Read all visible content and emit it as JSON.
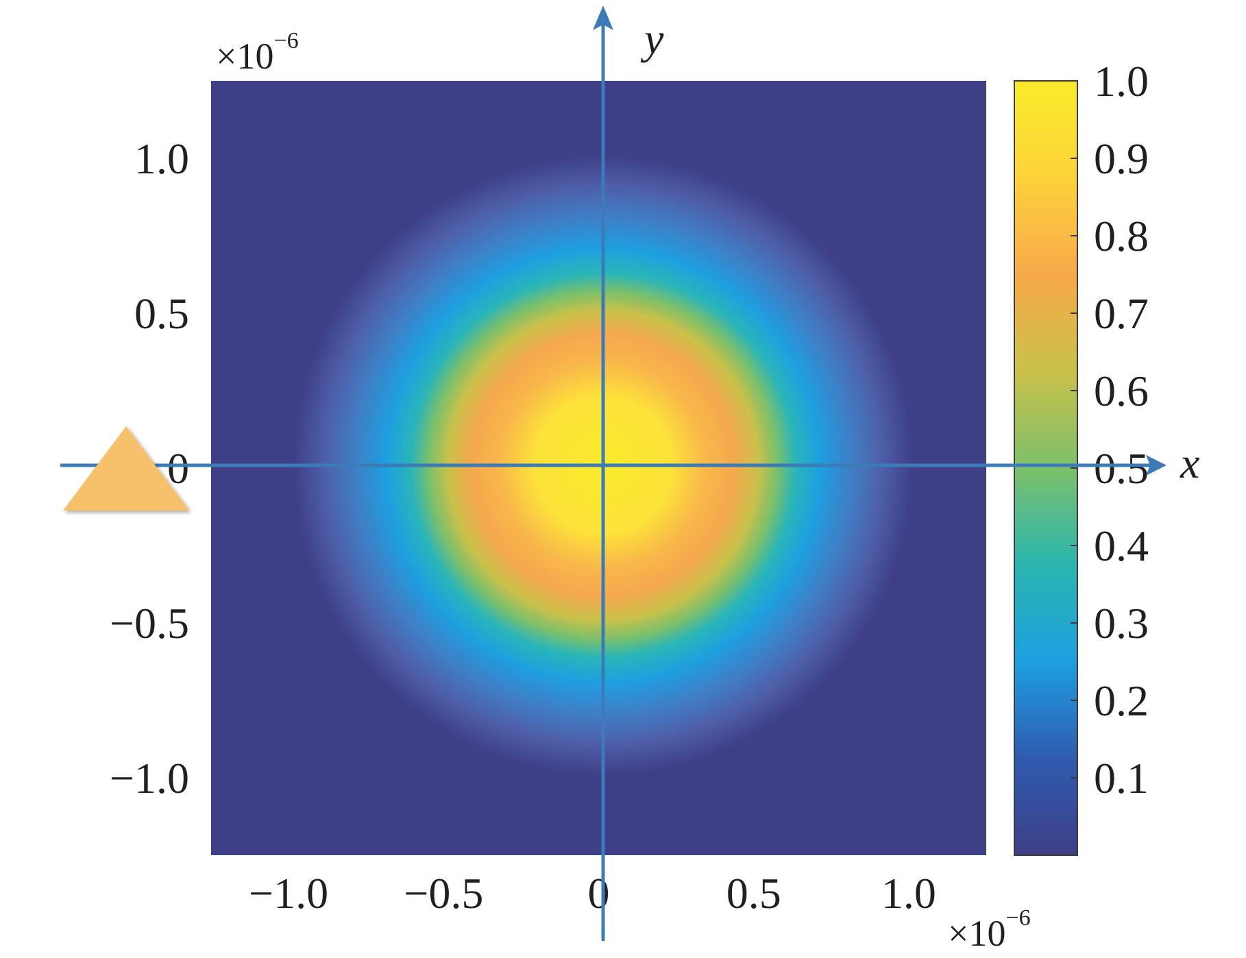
{
  "chart_data": {
    "type": "heatmap",
    "title": "",
    "xlabel": "x",
    "ylabel": "y",
    "x_multiplier": {
      "base": "×10",
      "exp": "−6"
    },
    "y_multiplier": {
      "base": "×10",
      "exp": "−6"
    },
    "xlim": [
      -1.25,
      1.25
    ],
    "ylim": [
      -1.25,
      1.25
    ],
    "x_ticks": [
      {
        "value": -1.0,
        "label": "−1.0"
      },
      {
        "value": -0.5,
        "label": "−0.5"
      },
      {
        "value": 0,
        "label": "0"
      },
      {
        "value": 0.5,
        "label": "0.5"
      },
      {
        "value": 1.0,
        "label": "1.0"
      }
    ],
    "y_ticks": [
      {
        "value": 1.0,
        "label": "1.0"
      },
      {
        "value": 0.5,
        "label": "0.5"
      },
      {
        "value": 0,
        "label": "0"
      },
      {
        "value": -0.5,
        "label": "−0.5"
      },
      {
        "value": -1.0,
        "label": "−1.0"
      }
    ],
    "field": {
      "shape": "circular gaussian spot",
      "center": [
        0,
        0
      ],
      "peak_value": 1.0,
      "radius_at_half_max": 0.62,
      "radius_at_background": 1.0
    },
    "colorbar": {
      "range": [
        0,
        1.0
      ],
      "ticks": [
        {
          "value": 1.0,
          "label": "1.0"
        },
        {
          "value": 0.9,
          "label": "0.9"
        },
        {
          "value": 0.8,
          "label": "0.8"
        },
        {
          "value": 0.7,
          "label": "0.7"
        },
        {
          "value": 0.6,
          "label": "0.6"
        },
        {
          "value": 0.5,
          "label": "0.5"
        },
        {
          "value": 0.4,
          "label": "0.4"
        },
        {
          "value": 0.3,
          "label": "0.3"
        },
        {
          "value": 0.2,
          "label": "0.2"
        },
        {
          "value": 0.1,
          "label": "0.1"
        }
      ],
      "colormap": [
        "#3e3f87",
        "#2f5bb0",
        "#1e9fe0",
        "#2ab5b0",
        "#7cc06a",
        "#c9c14a",
        "#f8a94a",
        "#fcd23a",
        "#f9ec2a"
      ]
    },
    "annotations": [
      {
        "type": "triangle-marker",
        "color": "#f7c06a",
        "position": "left of origin on x axis"
      }
    ],
    "axis_color": "#3b7cb8"
  }
}
